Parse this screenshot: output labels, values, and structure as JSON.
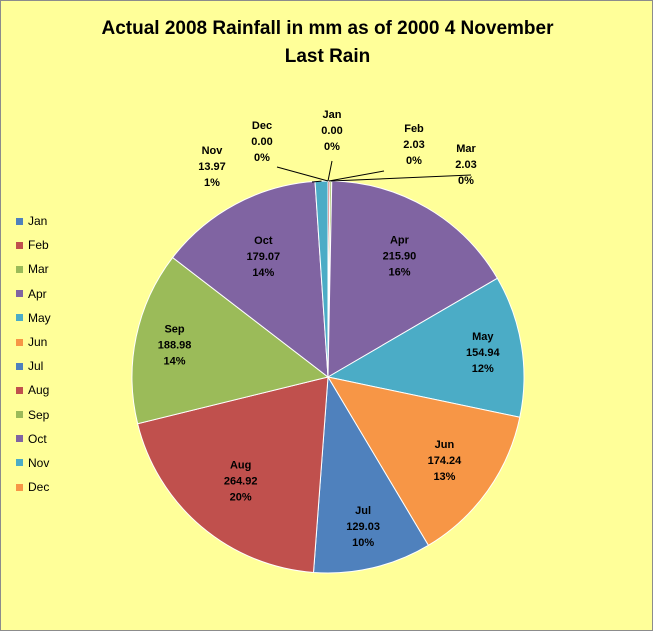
{
  "chart_data": {
    "type": "pie",
    "title_lines": [
      "Actual 2008 Rainfall in mm as of 2000 4 November",
      "Last Rain"
    ],
    "legend_position": "left",
    "categories": [
      "Jan",
      "Feb",
      "Mar",
      "Apr",
      "May",
      "Jun",
      "Jul",
      "Aug",
      "Sep",
      "Oct",
      "Nov",
      "Dec"
    ],
    "values": [
      0.0,
      2.03,
      2.03,
      215.9,
      154.94,
      174.24,
      129.03,
      264.92,
      188.98,
      179.07,
      13.97,
      0.0
    ],
    "value_labels": [
      "0.00",
      "2.03",
      "2.03",
      "215.90",
      "154.94",
      "174.24",
      "129.03",
      "264.92",
      "188.98",
      "179.07",
      "13.97",
      "0.00"
    ],
    "percent_labels": [
      "0%",
      "0%",
      "0%",
      "16%",
      "12%",
      "13%",
      "10%",
      "20%",
      "14%",
      "14%",
      "1%",
      "0%"
    ],
    "colors": [
      "#4F81BD",
      "#C0504D",
      "#9BBB59",
      "#8064A2",
      "#4BACC6",
      "#F79646",
      "#4F81BD",
      "#C0504D",
      "#9BBB59",
      "#8064A2",
      "#4BACC6",
      "#F79646"
    ]
  }
}
